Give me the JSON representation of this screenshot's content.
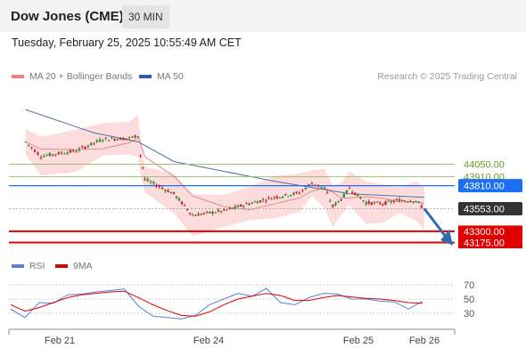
{
  "header": {
    "title": "Dow Jones (CME)",
    "timeframe": "30 MIN",
    "datetime": "Tuesday, February 25, 2025 10:55:49 AM CET"
  },
  "legend": {
    "bb_label": "MA 20 + Bollinger Bands",
    "ma50_label": "MA 50",
    "credit": "Research © 2025 Trading Central",
    "rsi_label": "RSI",
    "ma9_label": "9MA"
  },
  "colors": {
    "up": "#3a8a3a",
    "down": "#c62828",
    "bb_fill": "#fbd0d0",
    "ma20": "#e88a8a",
    "ma50": "#4a6ea8",
    "resistance_green": "#9bc46a",
    "pivot_blue": "#1a6ff2",
    "support_red": "#e00000",
    "price_tag": "#333333",
    "rsi": "#5a7fd8",
    "rsi_ma": "#e00000",
    "arrow": "#2f6db0"
  },
  "chart_data": [
    {
      "type": "candlestick",
      "title": "Dow Jones (CME)",
      "x_labels": [
        "Feb 21",
        "Feb 24",
        "Feb 25",
        "Feb 26"
      ],
      "price_levels": [
        {
          "label": "44050.00",
          "value": 44050,
          "kind": "resistance"
        },
        {
          "label": "43910.00",
          "value": 43910,
          "kind": "resistance"
        },
        {
          "label": "43810.00",
          "value": 43810,
          "kind": "pivot"
        },
        {
          "label": "43553.00",
          "value": 43553,
          "kind": "last"
        },
        {
          "label": "43300.00",
          "value": 43300,
          "kind": "support"
        },
        {
          "label": "43175.00",
          "value": 43175,
          "kind": "support"
        }
      ],
      "close_path": [
        {
          "x": "Feb 20 18:00",
          "y": 44300
        },
        {
          "x": "Feb 21 02:00",
          "y": 44140
        },
        {
          "x": "Feb 21 10:00",
          "y": 44200
        },
        {
          "x": "Feb 21 16:00",
          "y": 44330
        },
        {
          "x": "Feb 21 22:00",
          "y": 44340
        },
        {
          "x": "Feb 22 00:00",
          "y": 44370
        },
        {
          "x": "Feb 22 02:00",
          "y": 44150
        },
        {
          "x": "Feb 23 18:00",
          "y": 43880
        },
        {
          "x": "Feb 24 00:00",
          "y": 43720
        },
        {
          "x": "Feb 24 03:00",
          "y": 43480
        },
        {
          "x": "Feb 24 08:00",
          "y": 43530
        },
        {
          "x": "Feb 24 12:00",
          "y": 43610
        },
        {
          "x": "Feb 24 16:00",
          "y": 43680
        },
        {
          "x": "Feb 24 20:00",
          "y": 43730
        },
        {
          "x": "Feb 24 22:00",
          "y": 43840
        },
        {
          "x": "Feb 25 00:00",
          "y": 43780
        },
        {
          "x": "Feb 25 02:00",
          "y": 43580
        },
        {
          "x": "Feb 25 04:00",
          "y": 43660
        },
        {
          "x": "Feb 25 06:00",
          "y": 43780
        },
        {
          "x": "Feb 25 10:00",
          "y": 43620
        },
        {
          "x": "Feb 25 14:00",
          "y": 43610
        },
        {
          "x": "Feb 25 18:00",
          "y": 43650
        },
        {
          "x": "Feb 25 22:00",
          "y": 43640
        },
        {
          "x": "Feb 26 00:00",
          "y": 43550
        }
      ],
      "ma50": [
        {
          "x": "Feb 20 18:00",
          "y": 44660
        },
        {
          "x": "Feb 21 14:00",
          "y": 44400
        },
        {
          "x": "Feb 22 00:00",
          "y": 44300
        },
        {
          "x": "Feb 24 00:00",
          "y": 44080
        },
        {
          "x": "Feb 24 16:00",
          "y": 43860
        },
        {
          "x": "Feb 25 06:00",
          "y": 43720
        },
        {
          "x": "Feb 26 00:00",
          "y": 43680
        }
      ],
      "projection": {
        "from": 43553,
        "to": 43300
      }
    },
    {
      "type": "line",
      "title": "RSI",
      "y_ticks": [
        70,
        50,
        30
      ],
      "series": [
        {
          "name": "RSI",
          "values": [
            36,
            24,
            45,
            44,
            56,
            57,
            60,
            62,
            64,
            40,
            26,
            24,
            22,
            27,
            42,
            50,
            58,
            54,
            65,
            45,
            42,
            52,
            58,
            57,
            50,
            50,
            47,
            46,
            36,
            47
          ]
        },
        {
          "name": "9MA",
          "values": [
            42,
            33,
            38,
            45,
            52,
            56,
            58,
            60,
            61,
            52,
            42,
            34,
            27,
            26,
            32,
            42,
            50,
            54,
            58,
            55,
            48,
            48,
            52,
            55,
            53,
            51,
            50,
            48,
            45,
            44
          ]
        }
      ]
    }
  ]
}
